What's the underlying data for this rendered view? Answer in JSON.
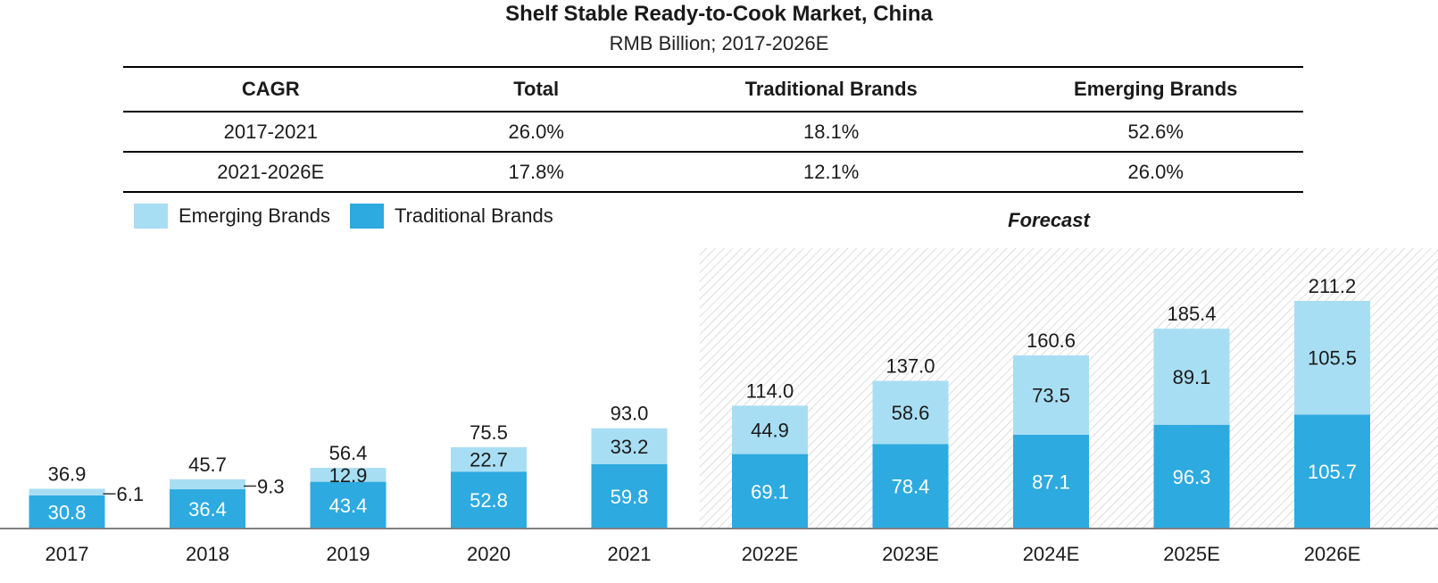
{
  "title": "Shelf Stable Ready-to-Cook Market, China",
  "subtitle": "RMB Billion; 2017-2026E",
  "cagr_table": {
    "headers": [
      "CAGR",
      "Total",
      "Traditional Brands",
      "Emerging Brands"
    ],
    "rows": [
      [
        "2017-2021",
        "26.0%",
        "18.1%",
        "52.6%"
      ],
      [
        "2021-2026E",
        "17.8%",
        "12.1%",
        "26.0%"
      ]
    ]
  },
  "legend": {
    "emerging": "Emerging Brands",
    "traditional": "Traditional Brands"
  },
  "forecast_label": "Forecast",
  "colors": {
    "emerging": "#a8def3",
    "traditional": "#2daae0",
    "axis": "#808080",
    "hatch": "#c8c8c8"
  },
  "chart_data": {
    "type": "bar",
    "stacked": true,
    "categories": [
      "2017",
      "2018",
      "2019",
      "2020",
      "2021",
      "2022E",
      "2023E",
      "2024E",
      "2025E",
      "2026E"
    ],
    "series": [
      {
        "name": "Traditional Brands",
        "values": [
          30.8,
          36.4,
          43.4,
          52.8,
          59.8,
          69.1,
          78.4,
          87.1,
          96.3,
          105.7
        ]
      },
      {
        "name": "Emerging Brands",
        "values": [
          6.1,
          9.3,
          12.9,
          22.7,
          33.2,
          44.9,
          58.6,
          73.5,
          89.1,
          105.5
        ]
      }
    ],
    "totals": [
      "36.9",
      "45.7",
      "56.4",
      "75.5",
      "93.0",
      "114.0",
      "137.0",
      "160.6",
      "185.4",
      "211.2"
    ],
    "traditional_labels": [
      "30.8",
      "36.4",
      "43.4",
      "52.8",
      "59.8",
      "69.1",
      "78.4",
      "87.1",
      "96.3",
      "105.7"
    ],
    "emerging_labels": [
      "6.1",
      "9.3",
      "12.9",
      "22.7",
      "33.2",
      "44.9",
      "58.6",
      "73.5",
      "89.1",
      "105.5"
    ],
    "emerging_label_outside": [
      true,
      true,
      false,
      false,
      false,
      false,
      false,
      false,
      false,
      false
    ],
    "forecast_start_index": 5,
    "ylim": [
      0,
      211.2
    ],
    "grid": false
  }
}
